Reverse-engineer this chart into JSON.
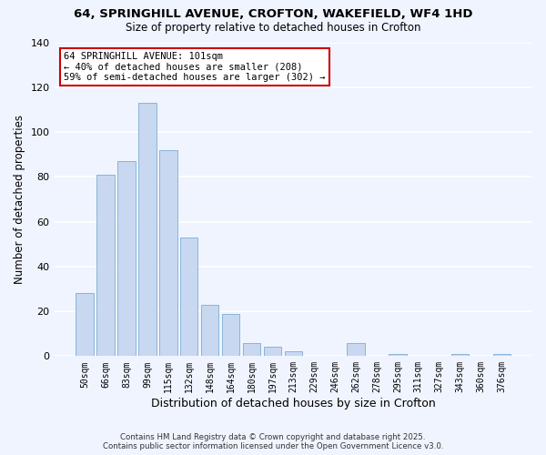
{
  "title1": "64, SPRINGHILL AVENUE, CROFTON, WAKEFIELD, WF4 1HD",
  "title2": "Size of property relative to detached houses in Crofton",
  "xlabel": "Distribution of detached houses by size in Crofton",
  "ylabel": "Number of detached properties",
  "categories": [
    "50sqm",
    "66sqm",
    "83sqm",
    "99sqm",
    "115sqm",
    "132sqm",
    "148sqm",
    "164sqm",
    "180sqm",
    "197sqm",
    "213sqm",
    "229sqm",
    "246sqm",
    "262sqm",
    "278sqm",
    "295sqm",
    "311sqm",
    "327sqm",
    "343sqm",
    "360sqm",
    "376sqm"
  ],
  "values": [
    28,
    81,
    87,
    113,
    92,
    53,
    23,
    19,
    6,
    4,
    2,
    0,
    0,
    6,
    0,
    1,
    0,
    0,
    1,
    0,
    1
  ],
  "bar_color": "#c8d8f0",
  "bar_edge_color": "#8ab4d8",
  "annotation_box_facecolor": "#ffffff",
  "annotation_border_color": "#cc0000",
  "annotation_text_line1": "64 SPRINGHILL AVENUE: 101sqm",
  "annotation_text_line2": "← 40% of detached houses are smaller (208)",
  "annotation_text_line3": "59% of semi-detached houses are larger (302) →",
  "ylim": [
    0,
    140
  ],
  "yticks": [
    0,
    20,
    40,
    60,
    80,
    100,
    120,
    140
  ],
  "footer_line1": "Contains HM Land Registry data © Crown copyright and database right 2025.",
  "footer_line2": "Contains public sector information licensed under the Open Government Licence v3.0.",
  "bg_color": "#f0f4ff"
}
